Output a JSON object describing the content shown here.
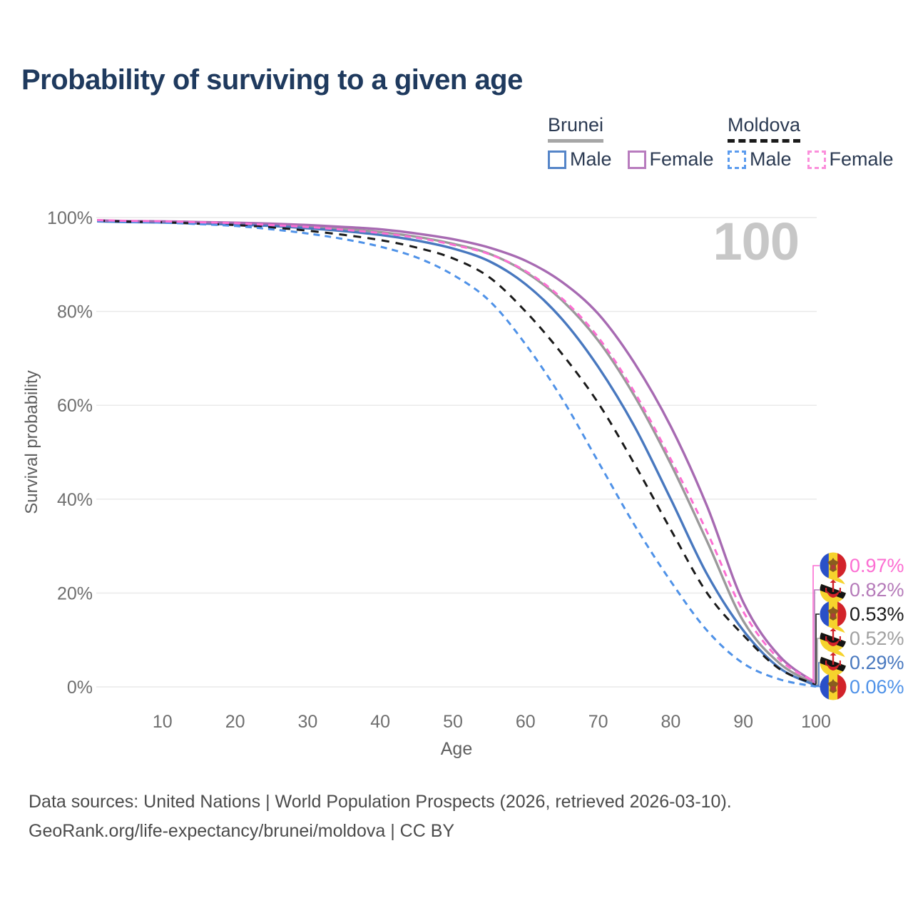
{
  "title": "Probability of surviving to a given age",
  "watermark": "100",
  "legend": {
    "groups": [
      {
        "label": "Brunei",
        "line_style": "solid",
        "line_color": "#a6a6a6",
        "items": [
          {
            "label": "Male",
            "color": "#5585c8",
            "dashed": false
          },
          {
            "label": "Female",
            "color": "#b87cbe",
            "dashed": false
          }
        ]
      },
      {
        "label": "Moldova",
        "line_style": "dashed",
        "line_color": "#1a1a1a",
        "items": [
          {
            "label": "Male",
            "color": "#5b9bee",
            "dashed": true
          },
          {
            "label": "Female",
            "color": "#fb8fdb",
            "dashed": true
          }
        ]
      }
    ]
  },
  "chart_data": {
    "type": "line",
    "title": "Probability of surviving to a given age",
    "xlabel": "Age",
    "ylabel": "Survival probability",
    "xlim": [
      0,
      100
    ],
    "ylim": [
      0,
      100
    ],
    "grid": "horizontal",
    "x_ticks": [
      10,
      20,
      30,
      40,
      50,
      60,
      70,
      80,
      90,
      100
    ],
    "y_tick_values": [
      0,
      20,
      40,
      60,
      80,
      100
    ],
    "y_tick_labels": [
      "0%",
      "20%",
      "40%",
      "60%",
      "80%",
      "100%"
    ],
    "ages": [
      1,
      5,
      10,
      15,
      20,
      25,
      30,
      35,
      40,
      45,
      50,
      55,
      60,
      65,
      70,
      75,
      80,
      85,
      90,
      95,
      100
    ],
    "series": [
      {
        "id": "brunei-both",
        "name": "Brunei — Both sexes",
        "country": "Brunei",
        "sex": "Both",
        "color": "#9a9a9a",
        "dash": "",
        "values": [
          99.3,
          99.15,
          99.05,
          98.9,
          98.7,
          98.45,
          98.1,
          97.6,
          96.9,
          95.9,
          94.4,
          92.3,
          88.4,
          82.4,
          73.8,
          62.0,
          47.5,
          31.0,
          14.0,
          5.0,
          0.52
        ]
      },
      {
        "id": "brunei-male",
        "name": "Brunei — Male",
        "country": "Brunei",
        "sex": "Male",
        "color": "#4878bf",
        "dash": "",
        "values": [
          99.2,
          99.05,
          98.95,
          98.75,
          98.5,
          98.2,
          97.7,
          97.1,
          96.3,
          95.1,
          93.4,
          90.7,
          85.8,
          78.4,
          68.2,
          55.5,
          40.0,
          24.0,
          12.0,
          4.0,
          0.29
        ]
      },
      {
        "id": "brunei-female",
        "name": "Brunei — Female",
        "country": "Brunei",
        "sex": "Female",
        "color": "#a76ab2",
        "dash": "",
        "values": [
          99.4,
          99.25,
          99.2,
          99.05,
          98.9,
          98.7,
          98.4,
          98.0,
          97.5,
          96.6,
          95.4,
          93.6,
          90.8,
          86.3,
          79.5,
          69.0,
          55.5,
          38.5,
          18.0,
          6.5,
          0.82
        ]
      },
      {
        "id": "moldova-both",
        "name": "Moldova — Both sexes",
        "country": "Moldova",
        "sex": "Both",
        "color": "#1a1a1a",
        "dash": "11 9",
        "values": [
          99.35,
          99.15,
          99.0,
          98.7,
          98.4,
          97.9,
          97.2,
          96.3,
          95.2,
          93.6,
          91.3,
          87.3,
          80.0,
          71.0,
          60.5,
          47.5,
          33.5,
          20.0,
          11.0,
          3.8,
          0.53
        ]
      },
      {
        "id": "moldova-male",
        "name": "Moldova — Male",
        "country": "Moldova",
        "sex": "Male",
        "color": "#4f92e8",
        "dash": "9 7",
        "values": [
          99.25,
          99.05,
          98.9,
          98.6,
          98.2,
          97.5,
          96.6,
          95.4,
          93.8,
          91.5,
          87.8,
          82.3,
          73.0,
          61.5,
          48.0,
          34.5,
          22.5,
          12.0,
          5.0,
          1.6,
          0.06
        ]
      },
      {
        "id": "moldova-female",
        "name": "Moldova — Female",
        "country": "Moldova",
        "sex": "Female",
        "color": "#fc6ed2",
        "dash": "9 7",
        "values": [
          99.45,
          99.3,
          99.2,
          99.0,
          98.8,
          98.4,
          98.0,
          97.4,
          96.7,
          95.7,
          94.2,
          92.2,
          88.6,
          82.8,
          74.5,
          62.8,
          48.5,
          33.0,
          16.0,
          5.8,
          0.97
        ]
      }
    ],
    "end_labels": [
      {
        "series": "moldova-female",
        "text": "0.97%",
        "color": "#fc6ed2",
        "flag": "moldova"
      },
      {
        "series": "brunei-female",
        "text": "0.82%",
        "color": "#b57ab9",
        "flag": "brunei"
      },
      {
        "series": "moldova-both",
        "text": "0.53%",
        "color": "#1a1a1a",
        "flag": "moldova"
      },
      {
        "series": "brunei-both",
        "text": "0.52%",
        "color": "#a0a0a0",
        "flag": "brunei"
      },
      {
        "series": "brunei-male",
        "text": "0.29%",
        "color": "#4878bf",
        "flag": "brunei"
      },
      {
        "series": "moldova-male",
        "text": "0.06%",
        "color": "#4f92e8",
        "flag": "moldova"
      }
    ]
  },
  "footer": {
    "line1": "Data sources: United Nations | World Population Prospects (2026, retrieved 2026-03-10).",
    "line2": "GeoRank.org/life-expectancy/brunei/moldova | CC BY"
  }
}
